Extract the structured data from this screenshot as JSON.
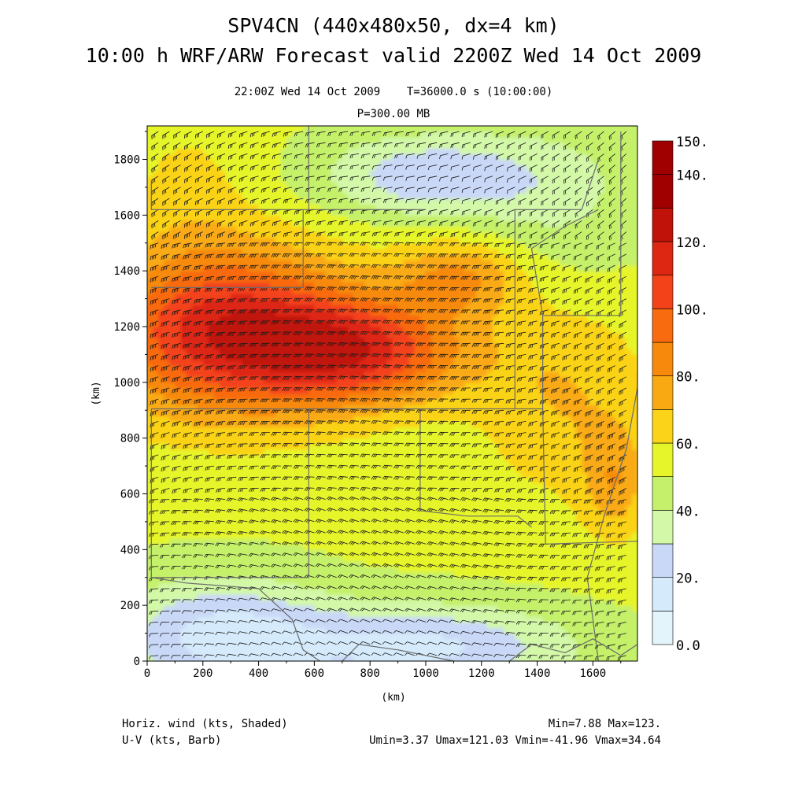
{
  "title": {
    "line1": "SPV4CN (440x480x50, dx=4 km)",
    "line2": "10:00 h WRF/ARW Forecast valid 2200Z Wed 14 Oct 2009"
  },
  "subtitle": "22:00Z Wed 14 Oct 2009    T=36000.0 s (10:00:00)",
  "level_label": "P=300.00 MB",
  "footer": {
    "field1": "Horiz. wind (kts, Shaded)",
    "field2": "U-V (kts, Barb)",
    "stats1": "Min=7.88 Max=123.",
    "stats2": "Umin=3.37 Umax=121.03 Vmin=-41.96 Vmax=34.64"
  },
  "colors": {
    "scale": [
      "#e3f4fb",
      "#d5ebfb",
      "#c9d8f7",
      "#d2f8a8",
      "#c4f06b",
      "#e6f52a",
      "#fbd318",
      "#f9aa12",
      "#f78a0c",
      "#f86b0e",
      "#f3421a",
      "#de2712",
      "#c01208",
      "#a00000"
    ]
  },
  "chart_data": {
    "type": "heatmap",
    "xlabel": "(km)",
    "ylabel": "(km)",
    "xlim": [
      0,
      1760
    ],
    "ylim": [
      0,
      1920
    ],
    "x_ticks": [
      0,
      200,
      400,
      600,
      800,
      1000,
      1200,
      1400,
      1600
    ],
    "y_ticks": [
      0,
      200,
      400,
      600,
      800,
      1000,
      1200,
      1400,
      1600,
      1800
    ],
    "colorbar": {
      "levels": [
        0,
        10,
        20,
        30,
        40,
        50,
        60,
        70,
        80,
        90,
        100,
        110,
        120,
        130,
        140,
        150
      ],
      "labels": [
        "0.0",
        "20.",
        "40.",
        "60.",
        "80.",
        "100.",
        "120.",
        "140.",
        "150."
      ],
      "label_values": [
        0,
        20,
        40,
        60,
        80,
        100,
        120,
        140,
        150
      ]
    },
    "field_features": [
      {
        "name": "jet core",
        "x": 350,
        "y": 1150,
        "speed": 120
      },
      {
        "name": "jet max east",
        "x": 800,
        "y": 1100,
        "speed": 112
      },
      {
        "name": "northeast lobe",
        "x": 1100,
        "y": 1380,
        "speed": 85
      },
      {
        "name": "light-wind area north",
        "x": 1000,
        "y": 1720,
        "speed": 25
      },
      {
        "name": "light-wind area southwest",
        "x": 250,
        "y": 100,
        "speed": 18
      },
      {
        "name": "light-wind area south",
        "x": 1000,
        "y": 60,
        "speed": 18
      }
    ],
    "min": 7.88,
    "max": 123,
    "grid": false
  }
}
